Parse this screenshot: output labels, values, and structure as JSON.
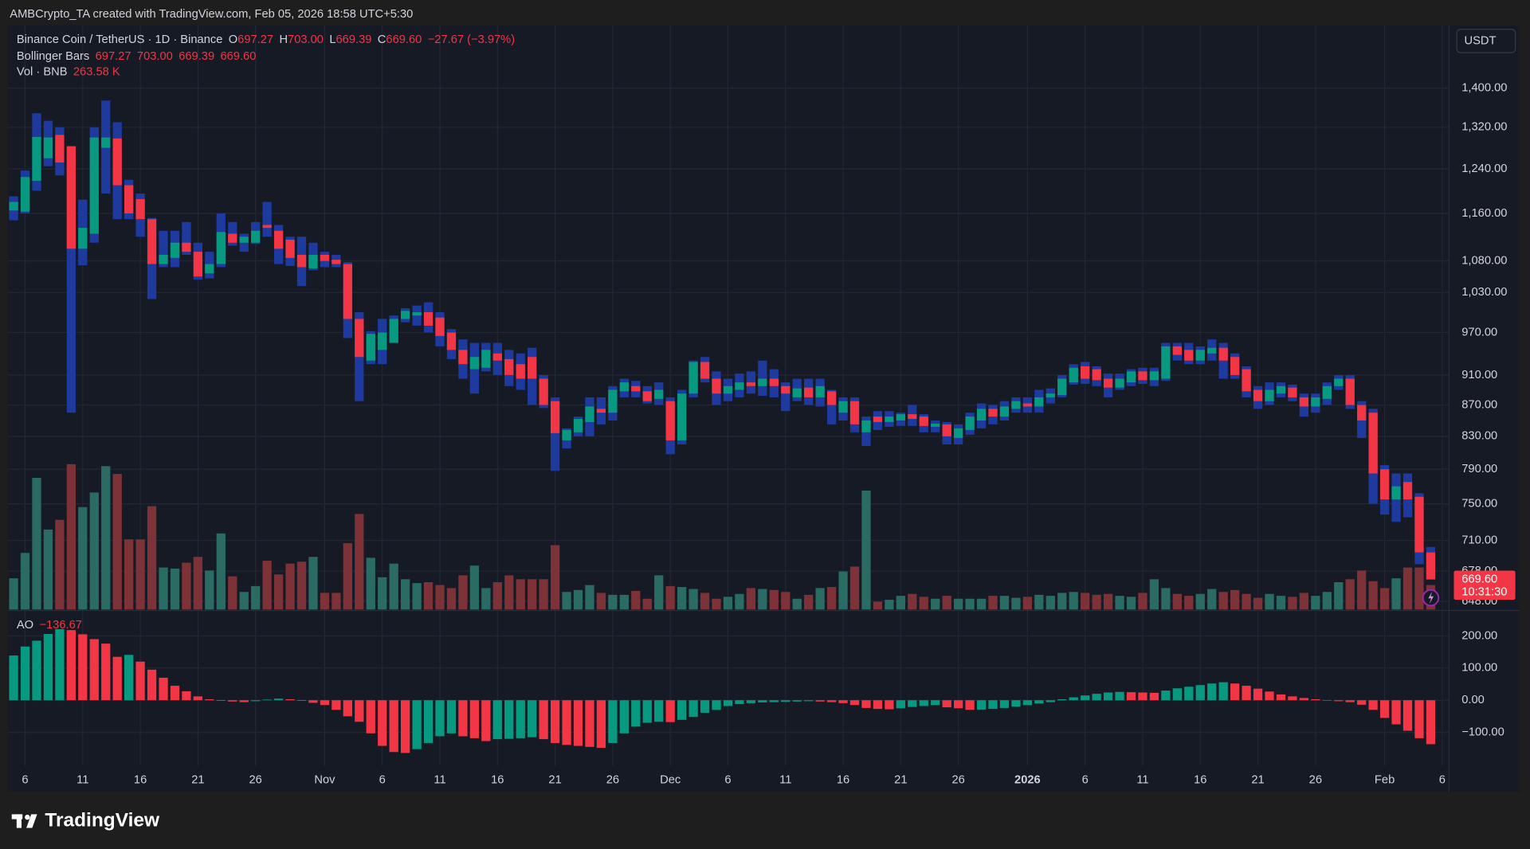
{
  "header": {
    "watermark": "AMBCrypto_TA created with TradingView.com, Feb 05, 2026 18:58 UTC+5:30",
    "brand": "TradingView",
    "currency": "USDT"
  },
  "chart_data": {
    "type": "candlestick",
    "log_scale": true,
    "grid": true,
    "legend": {
      "symbol": "Binance Coin / TetherUS · 1D · Binance",
      "ohlc": [
        {
          "key": "O",
          "value": "697.27"
        },
        {
          "key": "H",
          "value": "703.00"
        },
        {
          "key": "L",
          "value": "669.39"
        },
        {
          "key": "C",
          "value": "669.60"
        }
      ],
      "change": "−27.67 (−3.97%)",
      "bollinger": {
        "name": "Bollinger Bars",
        "values": [
          "697.27",
          "703.00",
          "669.39",
          "669.60"
        ]
      },
      "volume": {
        "name": "Vol · BNB",
        "value": "263.58 K"
      },
      "ao": {
        "name": "AO",
        "value": "−136.67"
      }
    },
    "last_price_label": "669.60",
    "countdown": "10:31:30",
    "up_color": "#089981",
    "down_color": "#f23645",
    "range_color": "#1e3a9e",
    "categories": [
      null,
      "6",
      null,
      null,
      null,
      null,
      "11",
      null,
      null,
      null,
      null,
      "16",
      null,
      null,
      null,
      null,
      "21",
      null,
      null,
      null,
      null,
      "26",
      null,
      null,
      null,
      null,
      null,
      "Nov",
      null,
      null,
      null,
      null,
      "6",
      null,
      null,
      null,
      null,
      "11",
      null,
      null,
      null,
      null,
      "16",
      null,
      null,
      null,
      null,
      "21",
      null,
      null,
      null,
      null,
      "26",
      null,
      null,
      null,
      null,
      "Dec",
      null,
      null,
      null,
      null,
      "6",
      null,
      null,
      null,
      null,
      "11",
      null,
      null,
      null,
      null,
      "16",
      null,
      null,
      null,
      null,
      "21",
      null,
      null,
      null,
      null,
      "26",
      null,
      null,
      null,
      null,
      null,
      "2026",
      null,
      null,
      null,
      null,
      "6",
      null,
      null,
      null,
      null,
      "11",
      null,
      null,
      null,
      null,
      "16",
      null,
      null,
      null,
      null,
      "21",
      null,
      null,
      null,
      null,
      "26",
      null,
      null,
      null,
      null,
      null,
      "Feb",
      null,
      null,
      null,
      null,
      "6"
    ],
    "open": [
      1165,
      1163,
      1218,
      1260,
      1305,
      1283,
      1100,
      1125,
      1280,
      1298,
      1210,
      1185,
      1150,
      1075,
      1085,
      1110,
      1095,
      1060,
      1075,
      1125,
      1110,
      1110,
      1140,
      1130,
      1115,
      1090,
      1068,
      1090,
      1082,
      1075,
      990,
      930,
      945,
      955,
      990,
      995,
      1000,
      992,
      970,
      945,
      918,
      920,
      940,
      932,
      925,
      935,
      905,
      875,
      825,
      835,
      848,
      865,
      860,
      888,
      895,
      888,
      878,
      875,
      825,
      885,
      928,
      905,
      885,
      890,
      900,
      895,
      905,
      895,
      880,
      893,
      880,
      888,
      860,
      875,
      835,
      855,
      848,
      850,
      858,
      855,
      842,
      845,
      828,
      838,
      850,
      865,
      855,
      865,
      872,
      868,
      880,
      883,
      900,
      922,
      918,
      905,
      893,
      900,
      915,
      903,
      905,
      950,
      945,
      930,
      940,
      948,
      935,
      918,
      890,
      875,
      885,
      893,
      880,
      868,
      878,
      895,
      905,
      870,
      860,
      790,
      755,
      775,
      758,
      697.27,
      null
    ],
    "high": [
      1190,
      1237,
      1348,
      1333,
      1320,
      1283,
      1184,
      1320,
      1374,
      1330,
      1220,
      1195,
      1152,
      1130,
      1130,
      1145,
      1110,
      1095,
      1160,
      1145,
      1125,
      1145,
      1180,
      1140,
      1120,
      1120,
      1110,
      1095,
      1090,
      1078,
      1000,
      972,
      990,
      995,
      1006,
      1010,
      1015,
      1000,
      975,
      960,
      955,
      955,
      955,
      945,
      940,
      948,
      910,
      880,
      840,
      855,
      880,
      880,
      895,
      905,
      902,
      895,
      900,
      880,
      890,
      930,
      935,
      915,
      905,
      912,
      915,
      930,
      918,
      900,
      905,
      905,
      905,
      890,
      880,
      880,
      855,
      862,
      862,
      860,
      870,
      858,
      850,
      848,
      845,
      860,
      872,
      870,
      875,
      880,
      880,
      890,
      892,
      910,
      925,
      928,
      922,
      912,
      912,
      918,
      920,
      920,
      955,
      955,
      955,
      950,
      960,
      955,
      940,
      922,
      895,
      900,
      900,
      897,
      885,
      885,
      900,
      910,
      910,
      875,
      865,
      795,
      785,
      785,
      762,
      703,
      null
    ],
    "low": [
      1148,
      1160,
      1200,
      1245,
      1228,
      860,
      1073,
      1110,
      1195,
      1150,
      1150,
      1120,
      1020,
      1070,
      1070,
      1090,
      1050,
      1052,
      1070,
      1105,
      1095,
      1108,
      1120,
      1075,
      1072,
      1040,
      1065,
      1070,
      1070,
      962,
      875,
      925,
      925,
      955,
      985,
      980,
      970,
      950,
      932,
      905,
      885,
      915,
      910,
      895,
      890,
      870,
      866,
      788,
      815,
      830,
      830,
      845,
      850,
      880,
      880,
      872,
      870,
      808,
      820,
      880,
      900,
      870,
      875,
      880,
      885,
      882,
      880,
      862,
      875,
      870,
      868,
      845,
      850,
      835,
      818,
      838,
      842,
      843,
      843,
      835,
      835,
      820,
      820,
      832,
      840,
      845,
      850,
      860,
      860,
      860,
      872,
      880,
      897,
      898,
      895,
      880,
      890,
      895,
      898,
      895,
      902,
      930,
      925,
      925,
      930,
      905,
      905,
      880,
      865,
      870,
      880,
      875,
      855,
      860,
      870,
      890,
      865,
      828,
      750,
      738,
      730,
      735,
      685,
      669.39,
      null
    ],
    "close": [
      1180,
      1225,
      1301,
      1300,
      1252,
      1100,
      1135,
      1300,
      1300,
      1210,
      1160,
      1150,
      1075,
      1090,
      1110,
      1095,
      1055,
      1075,
      1128,
      1110,
      1120,
      1130,
      1135,
      1100,
      1085,
      1070,
      1090,
      1080,
      1075,
      990,
      935,
      968,
      970,
      990,
      1002,
      1000,
      980,
      965,
      945,
      925,
      935,
      945,
      930,
      910,
      905,
      905,
      870,
      834,
      838,
      852,
      868,
      860,
      890,
      900,
      888,
      875,
      890,
      825,
      885,
      928,
      905,
      885,
      895,
      900,
      895,
      905,
      895,
      885,
      892,
      880,
      895,
      870,
      875,
      845,
      850,
      848,
      855,
      858,
      852,
      843,
      846,
      830,
      840,
      855,
      865,
      855,
      868,
      875,
      868,
      880,
      885,
      905,
      920,
      905,
      903,
      893,
      905,
      915,
      903,
      915,
      950,
      938,
      930,
      945,
      948,
      930,
      910,
      888,
      875,
      890,
      895,
      880,
      868,
      880,
      895,
      905,
      870,
      850,
      785,
      755,
      770,
      755,
      697.27,
      669.6,
      null
    ],
    "ylim": [
      640,
      1536
    ],
    "yticks": [
      {
        "value": 1400,
        "label": "1,400.00"
      },
      {
        "value": 1320,
        "label": "1,320.00"
      },
      {
        "value": 1240,
        "label": "1,240.00"
      },
      {
        "value": 1160,
        "label": "1,160.00"
      },
      {
        "value": 1080,
        "label": "1,080.00"
      },
      {
        "value": 1030,
        "label": "1,030.00"
      },
      {
        "value": 970,
        "label": "970.00"
      },
      {
        "value": 910,
        "label": "910.00"
      },
      {
        "value": 870,
        "label": "870.00"
      },
      {
        "value": 830,
        "label": "830.00"
      },
      {
        "value": 790,
        "label": "790.00"
      },
      {
        "value": 750,
        "label": "750.00"
      },
      {
        "value": 710,
        "label": "710.00"
      },
      {
        "value": 678,
        "label": "678.00"
      },
      {
        "value": 648,
        "label": "648.00"
      }
    ],
    "volume": {
      "up_color": "#2a6b63",
      "down_color": "#7c3236",
      "values": [
        336,
        609,
        1418,
        861,
        966,
        1565,
        1103,
        1260,
        1544,
        1460,
        756,
        756,
        1113,
        452,
        441,
        504,
        567,
        420,
        819,
        357,
        189,
        252,
        525,
        378,
        494,
        515,
        567,
        179,
        179,
        714,
        1029,
        557,
        347,
        494,
        326,
        284,
        294,
        263,
        231,
        368,
        473,
        231,
        294,
        368,
        326,
        326,
        326,
        693,
        189,
        210,
        263,
        179,
        158,
        158,
        200,
        116,
        368,
        252,
        242,
        221,
        179,
        116,
        137,
        168,
        231,
        221,
        210,
        189,
        116,
        158,
        231,
        242,
        410,
        462,
        1281,
        84,
        105,
        147,
        168,
        137,
        116,
        147,
        116,
        116,
        116,
        147,
        147,
        126,
        137,
        158,
        147,
        179,
        189,
        179,
        158,
        168,
        147,
        137,
        179,
        326,
        231,
        168,
        147,
        168,
        221,
        189,
        210,
        168,
        126,
        168,
        147,
        137,
        179,
        147,
        189,
        294,
        326,
        420,
        305,
        231,
        336,
        452,
        452,
        263.58,
        null
      ]
    },
    "ao": {
      "up_color": "#089981",
      "down_color": "#f23645",
      "values": [
        139,
        167,
        185,
        206,
        221,
        218,
        205,
        190,
        176,
        135,
        141,
        120,
        95,
        70,
        45,
        28,
        12,
        3,
        -2,
        -4,
        -6,
        -3,
        2,
        5,
        3,
        -2,
        -8,
        -15,
        -30,
        -50,
        -67,
        -103,
        -142,
        -161,
        -164,
        -152,
        -133,
        -112,
        -103,
        -112,
        -118,
        -127,
        -121,
        -120,
        -118,
        -115,
        -121,
        -133,
        -139,
        -142,
        -145,
        -148,
        -133,
        -103,
        -82,
        -70,
        -67,
        -68,
        -61,
        -52,
        -39,
        -30,
        -18,
        -12,
        -9,
        -7,
        -6,
        -5,
        -4,
        -3,
        -4,
        -6,
        -9,
        -15,
        -24,
        -27,
        -28,
        -25,
        -21,
        -18,
        -15,
        -22,
        -25,
        -30,
        -29,
        -27,
        -24,
        -20,
        -15,
        -10,
        -6,
        3,
        9,
        15,
        20,
        24,
        26,
        25,
        24,
        23,
        30,
        37,
        42,
        47,
        52,
        56,
        52,
        45,
        36,
        27,
        18,
        12,
        7,
        3,
        -1,
        -3,
        -6,
        -14,
        -30,
        -55,
        -75,
        -95,
        -118,
        -136.67,
        null
      ],
      "ylim": [
        -203,
        273
      ],
      "yticks": [
        {
          "value": 200,
          "label": "200.00"
        },
        {
          "value": 100,
          "label": "100.00"
        },
        {
          "value": 0,
          "label": "0.00"
        },
        {
          "value": -100,
          "label": "−100.00"
        }
      ]
    }
  }
}
